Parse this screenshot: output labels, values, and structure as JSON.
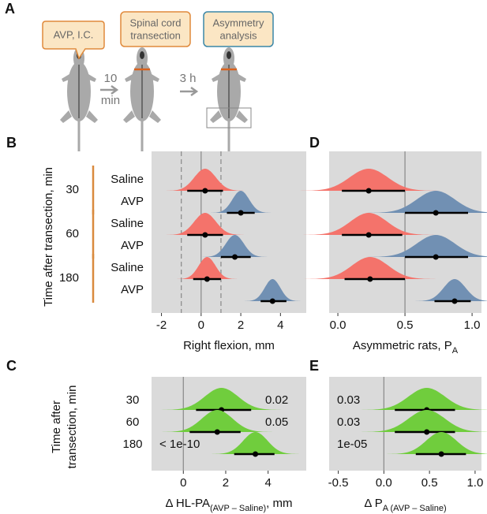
{
  "diagram": {
    "panel": "A",
    "boxes": [
      {
        "lines": [
          "AVP, I.C."
        ]
      },
      {
        "lines": [
          "Spinal cord",
          "transection"
        ]
      },
      {
        "lines": [
          "Asymmetry",
          "analysis"
        ]
      }
    ],
    "arrows": [
      {
        "lines": [
          "10",
          "min"
        ]
      },
      {
        "lines": [
          "3 h"
        ]
      }
    ]
  },
  "chart_data": [
    {
      "type": "halfeye",
      "panel": "B",
      "ylabel": "Time after transection, min",
      "groups": [
        "30",
        "60",
        "180"
      ],
      "categories": [
        "Saline",
        "AVP",
        "Saline",
        "AVP",
        "Saline",
        "AVP"
      ],
      "values": [
        0.2,
        2.0,
        0.2,
        1.7,
        0.3,
        3.6
      ],
      "lower": [
        -0.7,
        1.3,
        -0.7,
        1.0,
        -0.4,
        3.0
      ],
      "upper": [
        1.1,
        2.7,
        1.1,
        2.5,
        1.0,
        4.3
      ],
      "colors": [
        "#f4736b",
        "#7190b3",
        "#f4736b",
        "#7190b3",
        "#f4736b",
        "#7190b3"
      ],
      "xlabel": {
        "text": "Right flexion, mm"
      },
      "xlim": [
        -2.5,
        5.3
      ],
      "xticks": [
        -2,
        0,
        2,
        4
      ],
      "vlines": [
        {
          "value": -1,
          "style": "dashed"
        },
        {
          "value": 0,
          "style": "solid"
        },
        {
          "value": 1,
          "style": "dashed"
        }
      ]
    },
    {
      "type": "halfeye",
      "panel": "D",
      "values": [
        0.23,
        0.73,
        0.23,
        0.73,
        0.24,
        0.87
      ],
      "lower": [
        0.03,
        0.5,
        0.03,
        0.5,
        0.05,
        0.72
      ],
      "upper": [
        0.5,
        0.97,
        0.48,
        0.97,
        0.5,
        0.99
      ],
      "colors": [
        "#f4736b",
        "#7190b3",
        "#f4736b",
        "#7190b3",
        "#f4736b",
        "#7190b3"
      ],
      "xlabel": {
        "text": "Asymmetric rats, P",
        "sub": "A"
      },
      "xlim": [
        -0.065,
        1.07
      ],
      "xticks": [
        {
          "value": 0,
          "label": "0.0"
        },
        0.5,
        {
          "value": 1,
          "label": "1.0"
        }
      ],
      "vlines": [
        {
          "value": 0.5,
          "style": "solid"
        }
      ]
    },
    {
      "type": "halfeye",
      "panel": "C",
      "ylabel": [
        "Time after",
        "transection, min"
      ],
      "categories": [
        "30",
        "60",
        "180"
      ],
      "values": [
        1.8,
        1.6,
        3.4
      ],
      "lower": [
        0.6,
        0.3,
        2.4
      ],
      "upper": [
        3.2,
        2.7,
        4.3
      ],
      "color": "#70cd3d",
      "annotations": [
        "0.02",
        "0.05",
        "< 1e-10"
      ],
      "xlabel": {
        "text": "Δ HL-PA",
        "sub": "(AVP – Saline)",
        "suffix": ", mm"
      },
      "xlim": [
        -1.5,
        5.8
      ],
      "xticks": [
        0,
        2,
        4
      ],
      "vlines": [
        {
          "value": 0,
          "style": "solid"
        }
      ]
    },
    {
      "type": "halfeye",
      "panel": "E",
      "values": [
        0.47,
        0.47,
        0.63
      ],
      "lower": [
        0.12,
        0.12,
        0.35
      ],
      "upper": [
        0.78,
        0.78,
        0.9
      ],
      "color": "#70cd3d",
      "annotations": [
        "0.03",
        "0.03",
        "1e-05"
      ],
      "xlabel": {
        "text": "Δ P",
        "sub": "A (AVP – Saline)"
      },
      "xlim": [
        -0.6,
        1.07
      ],
      "xticks": [
        -0.5,
        {
          "value": 0,
          "label": "0.0"
        },
        0.5,
        {
          "value": 1,
          "label": "1.0"
        }
      ],
      "vlines": [
        {
          "value": 0,
          "style": "solid"
        }
      ]
    }
  ]
}
